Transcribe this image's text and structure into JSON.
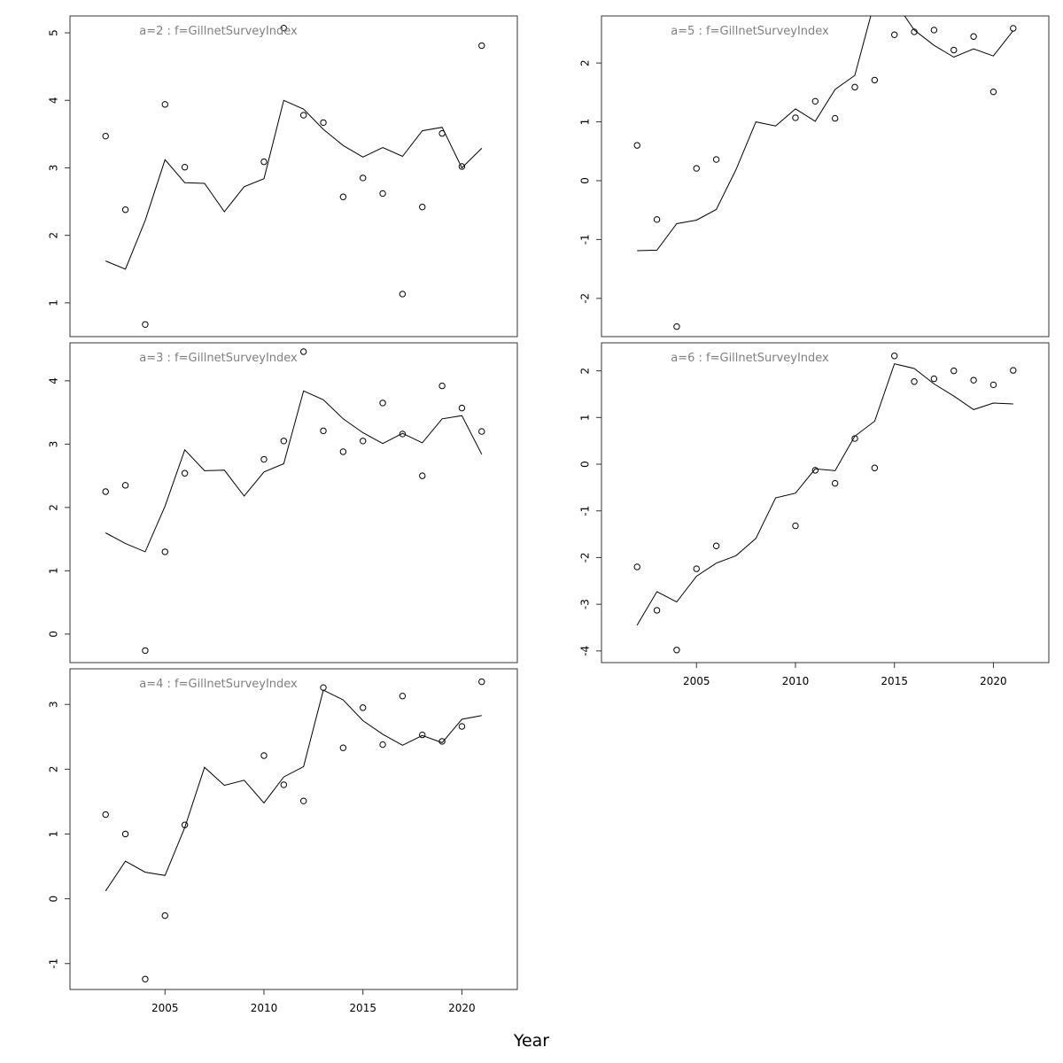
{
  "xlabel": "Year",
  "chart_data": [
    {
      "type": "line",
      "title": "a=2 : f=GillnetSurveyIndex",
      "xlim": [
        2000.2,
        2022.8
      ],
      "ylim": [
        0.5,
        5.25
      ],
      "yticks": [
        1,
        2,
        3,
        4,
        5
      ],
      "series": [
        {
          "kind": "line",
          "x": [
            2002,
            2003,
            2004,
            2005,
            2006,
            2007,
            2008,
            2009,
            2010,
            2011,
            2012,
            2013,
            2014,
            2015,
            2016,
            2017,
            2018,
            2019,
            2020,
            2021
          ],
          "y": [
            1.62,
            1.5,
            2.22,
            3.12,
            2.78,
            2.77,
            2.35,
            2.72,
            2.84,
            4.0,
            3.87,
            3.57,
            3.33,
            3.16,
            3.3,
            3.17,
            3.55,
            3.6,
            3.0,
            3.29
          ]
        },
        {
          "kind": "points",
          "x": [
            2002,
            2003,
            2004,
            2005,
            2006,
            2010,
            2011,
            2012,
            2013,
            2014,
            2015,
            2016,
            2017,
            2018,
            2019,
            2020,
            2021
          ],
          "y": [
            3.47,
            2.38,
            0.68,
            3.94,
            3.01,
            3.09,
            5.07,
            3.78,
            3.67,
            2.57,
            2.85,
            2.62,
            1.13,
            2.42,
            3.51,
            3.02,
            4.81
          ]
        }
      ]
    },
    {
      "type": "line",
      "title": "a=3 : f=GillnetSurveyIndex",
      "xlim": [
        2000.2,
        2022.8
      ],
      "ylim": [
        -0.45,
        4.6
      ],
      "yticks": [
        0,
        1,
        2,
        3,
        4
      ],
      "series": [
        {
          "kind": "line",
          "x": [
            2002,
            2003,
            2004,
            2005,
            2006,
            2007,
            2008,
            2009,
            2010,
            2011,
            2012,
            2013,
            2014,
            2015,
            2016,
            2017,
            2018,
            2019,
            2020,
            2021
          ],
          "y": [
            1.6,
            1.43,
            1.3,
            2.02,
            2.91,
            2.58,
            2.59,
            2.18,
            2.56,
            2.69,
            3.84,
            3.7,
            3.4,
            3.18,
            3.01,
            3.17,
            3.02,
            3.4,
            3.45,
            2.84
          ]
        },
        {
          "kind": "points",
          "x": [
            2002,
            2003,
            2004,
            2005,
            2006,
            2010,
            2011,
            2012,
            2013,
            2014,
            2015,
            2016,
            2017,
            2018,
            2019,
            2020,
            2021
          ],
          "y": [
            2.25,
            2.35,
            -0.26,
            1.3,
            2.54,
            2.76,
            3.05,
            4.46,
            3.21,
            2.88,
            3.05,
            3.65,
            3.16,
            2.5,
            3.92,
            3.57,
            3.2
          ]
        }
      ]
    },
    {
      "type": "line",
      "title": "a=4 : f=GillnetSurveyIndex",
      "xlim": [
        2000.2,
        2022.8
      ],
      "ylim": [
        -1.4,
        3.55
      ],
      "yticks": [
        -1,
        0,
        1,
        2,
        3
      ],
      "series": [
        {
          "kind": "line",
          "x": [
            2002,
            2003,
            2004,
            2005,
            2006,
            2007,
            2008,
            2009,
            2010,
            2011,
            2012,
            2013,
            2014,
            2015,
            2016,
            2017,
            2018,
            2019,
            2020,
            2021
          ],
          "y": [
            0.12,
            0.58,
            0.41,
            0.36,
            1.1,
            2.03,
            1.75,
            1.83,
            1.48,
            1.88,
            2.04,
            3.22,
            3.07,
            2.75,
            2.54,
            2.37,
            2.52,
            2.41,
            2.77,
            2.83
          ]
        },
        {
          "kind": "points",
          "x": [
            2002,
            2003,
            2004,
            2005,
            2006,
            2010,
            2011,
            2012,
            2013,
            2014,
            2015,
            2016,
            2017,
            2018,
            2019,
            2020,
            2021
          ],
          "y": [
            1.3,
            1.0,
            -1.24,
            -0.26,
            1.14,
            2.21,
            1.76,
            1.51,
            3.26,
            2.33,
            2.95,
            2.38,
            3.13,
            2.53,
            2.43,
            2.66,
            3.35
          ]
        }
      ]
    },
    {
      "type": "line",
      "title": "a=5 : f=GillnetSurveyIndex",
      "xlim": [
        2000.2,
        2022.8
      ],
      "ylim": [
        -2.65,
        2.8
      ],
      "yticks": [
        -2,
        -1,
        0,
        1,
        2
      ],
      "series": [
        {
          "kind": "line",
          "x": [
            2002,
            2003,
            2004,
            2005,
            2006,
            2007,
            2008,
            2009,
            2010,
            2011,
            2012,
            2013,
            2014,
            2015,
            2016,
            2017,
            2018,
            2019,
            2020,
            2021
          ],
          "y": [
            -1.19,
            -1.18,
            -0.73,
            -0.67,
            -0.49,
            0.19,
            1.0,
            0.93,
            1.22,
            1.01,
            1.55,
            1.79,
            3.05,
            3.05,
            2.56,
            2.3,
            2.1,
            2.24,
            2.12,
            2.55
          ]
        },
        {
          "kind": "points",
          "x": [
            2002,
            2003,
            2004,
            2005,
            2006,
            2010,
            2011,
            2012,
            2013,
            2014,
            2015,
            2016,
            2017,
            2018,
            2019,
            2020,
            2021
          ],
          "y": [
            0.6,
            -0.66,
            -2.48,
            0.21,
            0.36,
            1.07,
            1.35,
            1.06,
            1.59,
            1.71,
            2.48,
            2.53,
            2.56,
            2.22,
            2.45,
            1.51,
            2.59
          ]
        }
      ]
    },
    {
      "type": "line",
      "title": "a=6 : f=GillnetSurveyIndex",
      "xlim": [
        2000.2,
        2022.8
      ],
      "ylim": [
        -4.25,
        2.6
      ],
      "yticks": [
        -4,
        -3,
        -2,
        -1,
        0,
        1,
        2
      ],
      "series": [
        {
          "kind": "line",
          "x": [
            2002,
            2003,
            2004,
            2005,
            2006,
            2007,
            2008,
            2009,
            2010,
            2011,
            2012,
            2013,
            2014,
            2015,
            2016,
            2017,
            2018,
            2019,
            2020,
            2021
          ],
          "y": [
            -3.45,
            -2.73,
            -2.95,
            -2.4,
            -2.12,
            -1.96,
            -1.59,
            -0.72,
            -0.62,
            -0.1,
            -0.14,
            0.6,
            0.92,
            2.15,
            2.05,
            1.72,
            1.46,
            1.17,
            1.31,
            1.29
          ]
        },
        {
          "kind": "points",
          "x": [
            2002,
            2003,
            2004,
            2005,
            2006,
            2010,
            2011,
            2012,
            2013,
            2014,
            2015,
            2016,
            2017,
            2018,
            2019,
            2020,
            2021
          ],
          "y": [
            -2.2,
            -3.13,
            -3.98,
            -2.24,
            -1.75,
            -1.32,
            -0.13,
            -0.41,
            0.55,
            -0.08,
            2.32,
            1.77,
            1.83,
            2.0,
            1.8,
            1.7,
            2.01
          ]
        }
      ]
    }
  ],
  "xticks": [
    2005,
    2010,
    2015,
    2020
  ]
}
